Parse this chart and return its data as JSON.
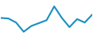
{
  "x": [
    0,
    1,
    2,
    3,
    4,
    5,
    6,
    7,
    8,
    9,
    10,
    11,
    12
  ],
  "y": [
    0.5,
    0.45,
    0.1,
    -0.7,
    -0.2,
    0.05,
    0.3,
    1.5,
    0.5,
    -0.3,
    0.4,
    0.1,
    0.8
  ],
  "line_color": "#1a8fc1",
  "linewidth": 1.5,
  "background_color": "#ffffff",
  "ylim": [
    -1.0,
    2.0
  ],
  "xlim": [
    0,
    12
  ]
}
